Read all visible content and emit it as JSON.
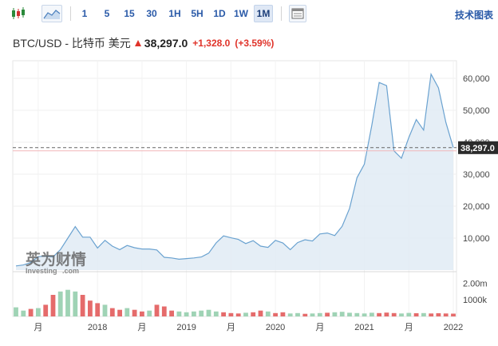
{
  "toolbar": {
    "chart_type_icons": [
      "candlestick-icon",
      "area-chart-icon"
    ],
    "intervals": [
      "1",
      "5",
      "15",
      "30",
      "1H",
      "5H",
      "1D",
      "1W",
      "1M"
    ],
    "selected_interval": "1M",
    "settings_icon": "data-table-icon",
    "tech_chart_label": "技术图表"
  },
  "header": {
    "pair": "BTC/USD - 比特币 美元",
    "last": "38,297.0",
    "change": "+1,328.0",
    "change_pct": "(+3.59%)",
    "up_color": "#e0332a"
  },
  "watermark": {
    "cn": "英为财情",
    "en": "Investing",
    "en_suffix": ".com"
  },
  "chart_data": {
    "type": "area",
    "price_tag": "38,297.0",
    "y_ticks": [
      "60,000",
      "50,000",
      "40,000",
      "30,000",
      "20,000",
      "10,000"
    ],
    "y_tick_values": [
      60000,
      50000,
      40000,
      30000,
      20000,
      10000
    ],
    "volume_ticks": [
      "2.00m",
      "1000k"
    ],
    "x_ticks": [
      "月",
      "2018",
      "月",
      "2019",
      "月",
      "2020",
      "月",
      "2021",
      "月",
      "2022"
    ],
    "x_tick_month_index": [
      3,
      11,
      17,
      23,
      29,
      35,
      41,
      47,
      53,
      59
    ],
    "ylim": [
      0,
      64000
    ],
    "line_color": "#6aa2d0",
    "fill_color": "#e1ebf5",
    "price_line_color": "#f2b6b9",
    "volume_up_color": "#9fd3b5",
    "volume_down_color": "#e56b6b",
    "close": [
      1300,
      1600,
      2400,
      4200,
      4400,
      4100,
      6400,
      10000,
      13600,
      10300,
      10300,
      6900,
      9300,
      7500,
      6400,
      7700,
      7000,
      6600,
      6600,
      6300,
      4000,
      3800,
      3400,
      3600,
      3800,
      4100,
      5300,
      8500,
      10700,
      10100,
      9600,
      8300,
      9200,
      7500,
      7100,
      9300,
      8500,
      6400,
      8600,
      9500,
      9100,
      11300,
      11600,
      10800,
      13700,
      19300,
      28900,
      33100,
      45200,
      58700,
      57700,
      37300,
      35000,
      41500,
      47100,
      43800,
      61300,
      57000,
      46200,
      38297
    ],
    "volume": [
      550000,
      350000,
      450000,
      500000,
      700000,
      1300000,
      1500000,
      1600000,
      1500000,
      1300000,
      950000,
      800000,
      700000,
      500000,
      400000,
      500000,
      400000,
      300000,
      350000,
      700000,
      600000,
      350000,
      300000,
      250000,
      300000,
      350000,
      400000,
      300000,
      250000,
      200000,
      180000,
      220000,
      250000,
      350000,
      300000,
      200000,
      250000,
      180000,
      200000,
      160000,
      180000,
      200000,
      220000,
      250000,
      280000,
      220000,
      200000,
      180000,
      220000,
      200000,
      230000,
      200000,
      180000,
      210000,
      190000,
      200000,
      180000,
      190000,
      180000,
      170000
    ],
    "volume_dir": [
      "u",
      "u",
      "d",
      "u",
      "d",
      "d",
      "u",
      "u",
      "u",
      "d",
      "d",
      "d",
      "u",
      "d",
      "d",
      "u",
      "d",
      "d",
      "u",
      "d",
      "d",
      "d",
      "u",
      "u",
      "u",
      "u",
      "u",
      "u",
      "d",
      "d",
      "d",
      "u",
      "d",
      "d",
      "u",
      "d",
      "d",
      "u",
      "u",
      "d",
      "u",
      "u",
      "d",
      "u",
      "u",
      "u",
      "u",
      "u",
      "u",
      "d",
      "d",
      "d",
      "u",
      "u",
      "d",
      "u",
      "d",
      "d",
      "d",
      "d"
    ],
    "volume_max": 2500000,
    "grid": true,
    "dashed_price_line": true
  }
}
